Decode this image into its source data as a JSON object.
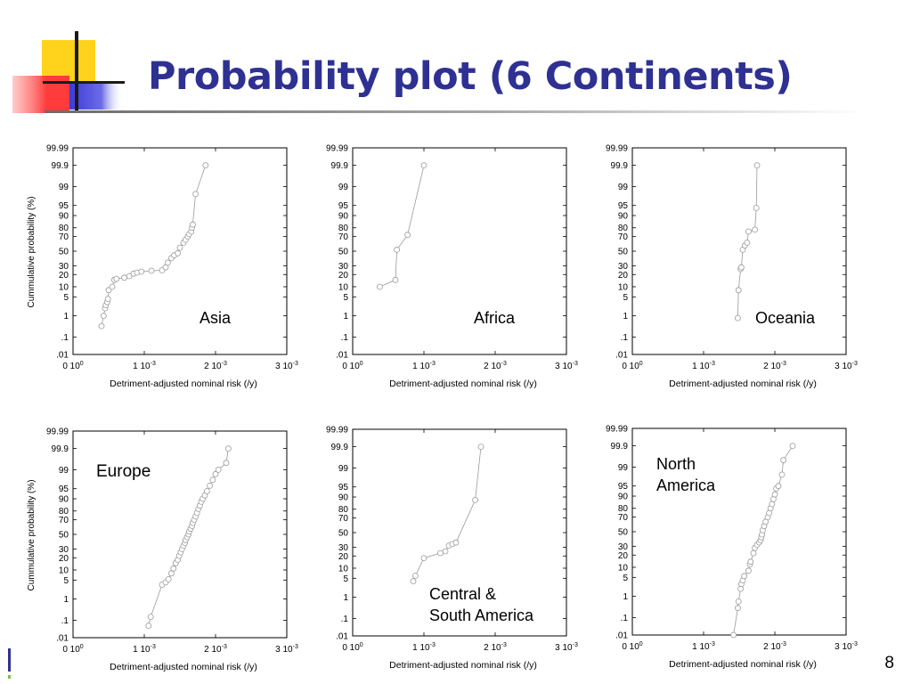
{
  "title": "Probability plot (6 Continents)",
  "page_number": "8",
  "colors": {
    "title": "#2e3192",
    "logo_yellow": "#ffd21c",
    "logo_red": "#ff3b3b",
    "logo_blue": "#3b3bd8",
    "markers": "#9a9a9a"
  },
  "chart_data": [
    {
      "type": "scatter",
      "title": "",
      "annotation": "Asia",
      "xlabel": "Detriment-adjusted nominal risk (/y)",
      "ylabel": "Cummulative probability (%)",
      "x_ticks": [
        "0 10^0",
        "1 10^-3",
        "2 10^-3",
        "3 10^-3"
      ],
      "x_tick_values": [
        0,
        0.001,
        0.002,
        0.003
      ],
      "xlim": [
        0,
        0.003
      ],
      "y_scale": "normal-probability",
      "y_ticks": [
        ".01",
        ".1",
        "1",
        "5",
        "10",
        "20",
        "30",
        "50",
        "70",
        "80",
        "90",
        "95",
        "99",
        "99.9",
        "99.99"
      ],
      "ylim": [
        0.01,
        99.99
      ],
      "grid": false,
      "line": true,
      "points": [
        {
          "x": 0.0004,
          "y": 0.35
        },
        {
          "x": 0.00043,
          "y": 1.0
        },
        {
          "x": 0.00045,
          "y": 2.0
        },
        {
          "x": 0.00046,
          "y": 2.6
        },
        {
          "x": 0.00048,
          "y": 3.3
        },
        {
          "x": 0.00049,
          "y": 4.3
        },
        {
          "x": 0.0005,
          "y": 8.0
        },
        {
          "x": 0.00055,
          "y": 10.0
        },
        {
          "x": 0.00058,
          "y": 15.0
        },
        {
          "x": 0.00061,
          "y": 16.0
        },
        {
          "x": 0.00072,
          "y": 17.0
        },
        {
          "x": 0.00079,
          "y": 18.5
        },
        {
          "x": 0.00085,
          "y": 21.0
        },
        {
          "x": 0.0009,
          "y": 22.0
        },
        {
          "x": 0.00096,
          "y": 23.0
        },
        {
          "x": 0.0011,
          "y": 24.0
        },
        {
          "x": 0.00125,
          "y": 24.5
        },
        {
          "x": 0.0013,
          "y": 28.0
        },
        {
          "x": 0.00133,
          "y": 34.0
        },
        {
          "x": 0.00138,
          "y": 40.0
        },
        {
          "x": 0.00142,
          "y": 44.0
        },
        {
          "x": 0.00147,
          "y": 47.0
        },
        {
          "x": 0.0015,
          "y": 55.0
        },
        {
          "x": 0.00155,
          "y": 62.0
        },
        {
          "x": 0.00158,
          "y": 66.0
        },
        {
          "x": 0.00161,
          "y": 70.0
        },
        {
          "x": 0.00163,
          "y": 73.0
        },
        {
          "x": 0.00166,
          "y": 76.0
        },
        {
          "x": 0.00167,
          "y": 80.0
        },
        {
          "x": 0.00168,
          "y": 83.0
        },
        {
          "x": 0.00172,
          "y": 98.0
        },
        {
          "x": 0.00186,
          "y": 99.9
        }
      ]
    },
    {
      "type": "scatter",
      "title": "",
      "annotation": "Africa",
      "xlabel": "Detriment-adjusted nominal risk (/y)",
      "ylabel": "",
      "x_ticks": [
        "0 10^0",
        "1 10^-3",
        "2 10^-3",
        "3 10^-3"
      ],
      "x_tick_values": [
        0,
        0.001,
        0.002,
        0.003
      ],
      "xlim": [
        0,
        0.003
      ],
      "y_scale": "normal-probability",
      "y_ticks": [
        ".01",
        ".1",
        "1",
        "5",
        "10",
        "20",
        "30",
        "50",
        "70",
        "80",
        "90",
        "95",
        "99",
        "99.9",
        "99.99"
      ],
      "ylim": [
        0.01,
        99.99
      ],
      "grid": false,
      "line": true,
      "points": [
        {
          "x": 0.00038,
          "y": 10.0
        },
        {
          "x": 0.0006,
          "y": 15.0
        },
        {
          "x": 0.00062,
          "y": 52.0
        },
        {
          "x": 0.00077,
          "y": 72.0
        },
        {
          "x": 0.001,
          "y": 99.9
        }
      ]
    },
    {
      "type": "scatter",
      "title": "",
      "annotation": "Oceania",
      "xlabel": "Detriment-adjusted nominal risk (/y)",
      "ylabel": "",
      "x_ticks": [
        "0 10^0",
        "1 10^-3",
        "2 10^-3",
        "3 10^-3"
      ],
      "x_tick_values": [
        0,
        0.001,
        0.002,
        0.003
      ],
      "xlim": [
        0,
        0.003
      ],
      "y_scale": "normal-probability",
      "y_ticks": [
        ".01",
        ".1",
        "1",
        "5",
        "10",
        "20",
        "30",
        "50",
        "70",
        "80",
        "90",
        "95",
        "99",
        "99.9",
        "99.99"
      ],
      "ylim": [
        0.01,
        99.99
      ],
      "grid": false,
      "line": true,
      "points": [
        {
          "x": 0.00148,
          "y": 0.8
        },
        {
          "x": 0.00149,
          "y": 8.0
        },
        {
          "x": 0.00152,
          "y": 26.0
        },
        {
          "x": 0.00153,
          "y": 28.0
        },
        {
          "x": 0.00155,
          "y": 52.0
        },
        {
          "x": 0.00158,
          "y": 58.0
        },
        {
          "x": 0.00161,
          "y": 62.0
        },
        {
          "x": 0.00163,
          "y": 76.0
        },
        {
          "x": 0.00172,
          "y": 78.0
        },
        {
          "x": 0.00174,
          "y": 94.0
        },
        {
          "x": 0.00175,
          "y": 99.9
        }
      ]
    },
    {
      "type": "scatter",
      "title": "",
      "annotation": "Europe",
      "xlabel": "Detriment-adjusted nominal risk (/y)",
      "ylabel": "Cummulative probability (%)",
      "x_ticks": [
        "0 10^0",
        "1 10^-3",
        "2 10^-3",
        "3 10^-3"
      ],
      "x_tick_values": [
        0,
        0.001,
        0.002,
        0.003
      ],
      "xlim": [
        0,
        0.003
      ],
      "y_scale": "normal-probability",
      "y_ticks": [
        ".01",
        ".1",
        "1",
        "5",
        "10",
        "20",
        "30",
        "50",
        "70",
        "80",
        "90",
        "95",
        "99",
        "99.9",
        "99.99"
      ],
      "ylim": [
        0.01,
        99.99
      ],
      "grid": false,
      "line": true,
      "points": [
        {
          "x": 0.00106,
          "y": 0.05
        },
        {
          "x": 0.00109,
          "y": 0.15
        },
        {
          "x": 0.00125,
          "y": 3.5
        },
        {
          "x": 0.0013,
          "y": 4.2
        },
        {
          "x": 0.00134,
          "y": 5.3
        },
        {
          "x": 0.00138,
          "y": 8.0
        },
        {
          "x": 0.00141,
          "y": 11.0
        },
        {
          "x": 0.00144,
          "y": 15.0
        },
        {
          "x": 0.00147,
          "y": 18.0
        },
        {
          "x": 0.00149,
          "y": 22.0
        },
        {
          "x": 0.00151,
          "y": 26.0
        },
        {
          "x": 0.00153,
          "y": 30.0
        },
        {
          "x": 0.00155,
          "y": 34.0
        },
        {
          "x": 0.00157,
          "y": 38.0
        },
        {
          "x": 0.00158,
          "y": 42.0
        },
        {
          "x": 0.0016,
          "y": 46.0
        },
        {
          "x": 0.00162,
          "y": 50.0
        },
        {
          "x": 0.00163,
          "y": 54.0
        },
        {
          "x": 0.00165,
          "y": 58.0
        },
        {
          "x": 0.00167,
          "y": 62.0
        },
        {
          "x": 0.00168,
          "y": 66.0
        },
        {
          "x": 0.0017,
          "y": 70.0
        },
        {
          "x": 0.00172,
          "y": 74.0
        },
        {
          "x": 0.00174,
          "y": 78.0
        },
        {
          "x": 0.00176,
          "y": 82.0
        },
        {
          "x": 0.00178,
          "y": 85.0
        },
        {
          "x": 0.0018,
          "y": 88.0
        },
        {
          "x": 0.00182,
          "y": 90.0
        },
        {
          "x": 0.00185,
          "y": 92.0
        },
        {
          "x": 0.00188,
          "y": 94.0
        },
        {
          "x": 0.00192,
          "y": 96.0
        },
        {
          "x": 0.00196,
          "y": 97.5
        },
        {
          "x": 0.002,
          "y": 98.5
        },
        {
          "x": 0.00204,
          "y": 99.0
        },
        {
          "x": 0.00215,
          "y": 99.5
        },
        {
          "x": 0.00218,
          "y": 99.9
        }
      ]
    },
    {
      "type": "scatter",
      "title": "",
      "annotation": "Central & South America",
      "xlabel": "Detriment-adjusted nominal risk (/y)",
      "ylabel": "",
      "x_ticks": [
        "0 10^0",
        "1 10^-3",
        "2 10^-3",
        "3 10^-3"
      ],
      "x_tick_values": [
        0,
        0.001,
        0.002,
        0.003
      ],
      "xlim": [
        0,
        0.003
      ],
      "y_scale": "normal-probability",
      "y_ticks": [
        ".01",
        ".1",
        "1",
        "5",
        "10",
        "20",
        "30",
        "50",
        "70",
        "80",
        "90",
        "95",
        "99",
        "99.9",
        "99.99"
      ],
      "ylim": [
        0.01,
        99.99
      ],
      "grid": false,
      "line": true,
      "points": [
        {
          "x": 0.00085,
          "y": 4.0
        },
        {
          "x": 0.00088,
          "y": 6.0
        },
        {
          "x": 0.001,
          "y": 18.0
        },
        {
          "x": 0.00123,
          "y": 23.0
        },
        {
          "x": 0.0013,
          "y": 25.0
        },
        {
          "x": 0.00135,
          "y": 32.0
        },
        {
          "x": 0.0014,
          "y": 34.0
        },
        {
          "x": 0.00145,
          "y": 36.0
        },
        {
          "x": 0.00172,
          "y": 88.0
        },
        {
          "x": 0.0018,
          "y": 99.9
        }
      ]
    },
    {
      "type": "scatter",
      "title": "",
      "annotation": "North America",
      "xlabel": "Detriment-adjusted nominal risk (/y)",
      "ylabel": "",
      "x_ticks": [
        "0 10^0",
        "1 10^-3",
        "2 10^-3",
        "3 10^-3"
      ],
      "x_tick_values": [
        0,
        0.001,
        0.002,
        0.003
      ],
      "xlim": [
        0,
        0.003
      ],
      "y_scale": "normal-probability",
      "y_ticks": [
        ".01",
        ".1",
        "1",
        "5",
        "10",
        "20",
        "30",
        "50",
        "70",
        "80",
        "90",
        "95",
        "99",
        "99.9",
        "99.99"
      ],
      "ylim": [
        0.01,
        99.99
      ],
      "grid": false,
      "line": true,
      "points": [
        {
          "x": 0.00142,
          "y": 0.01
        },
        {
          "x": 0.00148,
          "y": 0.3
        },
        {
          "x": 0.00149,
          "y": 0.6
        },
        {
          "x": 0.00152,
          "y": 2.0
        },
        {
          "x": 0.00153,
          "y": 3.0
        },
        {
          "x": 0.00155,
          "y": 4.0
        },
        {
          "x": 0.00157,
          "y": 5.5
        },
        {
          "x": 0.00163,
          "y": 8.0
        },
        {
          "x": 0.00165,
          "y": 12.0
        },
        {
          "x": 0.00166,
          "y": 14.0
        },
        {
          "x": 0.0017,
          "y": 22.0
        },
        {
          "x": 0.00172,
          "y": 28.0
        },
        {
          "x": 0.00175,
          "y": 32.0
        },
        {
          "x": 0.00178,
          "y": 35.0
        },
        {
          "x": 0.0018,
          "y": 38.0
        },
        {
          "x": 0.00181,
          "y": 42.0
        },
        {
          "x": 0.00182,
          "y": 46.0
        },
        {
          "x": 0.00183,
          "y": 52.0
        },
        {
          "x": 0.00185,
          "y": 58.0
        },
        {
          "x": 0.00187,
          "y": 64.0
        },
        {
          "x": 0.0019,
          "y": 70.0
        },
        {
          "x": 0.00192,
          "y": 75.0
        },
        {
          "x": 0.00194,
          "y": 80.0
        },
        {
          "x": 0.00196,
          "y": 84.0
        },
        {
          "x": 0.00198,
          "y": 88.0
        },
        {
          "x": 0.002,
          "y": 91.0
        },
        {
          "x": 0.00202,
          "y": 94.0
        },
        {
          "x": 0.00205,
          "y": 95.0
        },
        {
          "x": 0.0021,
          "y": 98.0
        },
        {
          "x": 0.00212,
          "y": 99.5
        },
        {
          "x": 0.00225,
          "y": 99.9
        }
      ]
    }
  ]
}
